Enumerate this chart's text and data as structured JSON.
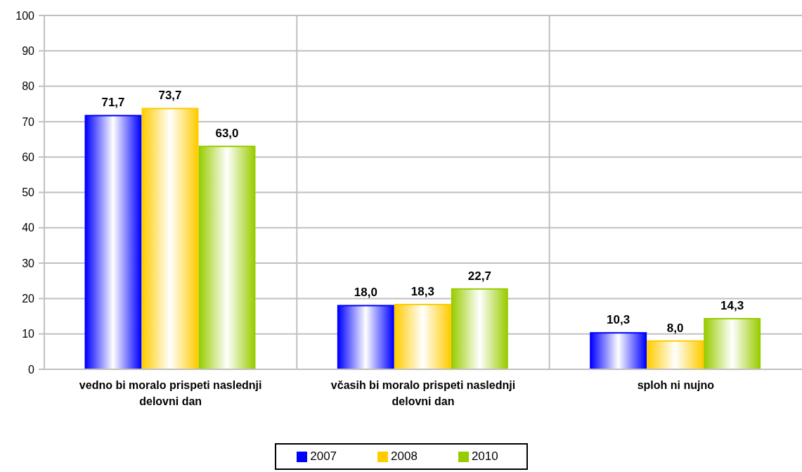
{
  "chart_data": {
    "type": "bar",
    "categories": [
      "vedno bi moralo prispeti naslednji delovni dan",
      "včasih bi moralo prispeti naslednji delovni dan",
      "sploh ni nujno"
    ],
    "series": [
      {
        "name": "2007",
        "color": "#0000ff",
        "values": [
          71.7,
          18.0,
          10.3
        ],
        "value_labels": [
          "71,7",
          "18,0",
          "10,3"
        ]
      },
      {
        "name": "2008",
        "color": "#ffcc00",
        "values": [
          73.7,
          18.3,
          8.0
        ],
        "value_labels": [
          "73,7",
          "18,3",
          "8,0"
        ]
      },
      {
        "name": "2010",
        "color": "#99cc00",
        "values": [
          63.0,
          22.7,
          14.3
        ],
        "value_labels": [
          "63,0",
          "22,7",
          "14,3"
        ]
      }
    ],
    "ylim": [
      0,
      100
    ],
    "yticks": [
      0,
      10,
      20,
      30,
      40,
      50,
      60,
      70,
      80,
      90,
      100
    ],
    "grid": true,
    "legend": "bottom"
  }
}
